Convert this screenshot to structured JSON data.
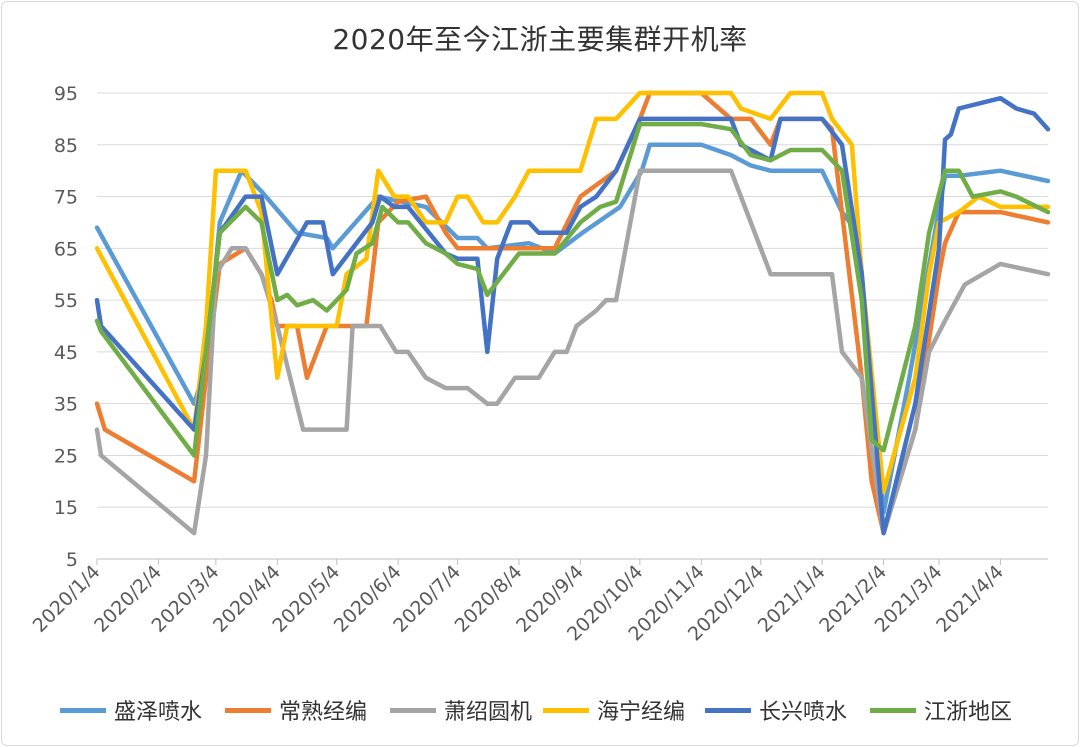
{
  "chart_data": {
    "type": "line",
    "title": "2020年至今江浙主要集群开机率",
    "xlabel": "",
    "ylabel": "",
    "ylim": [
      5,
      95
    ],
    "y_ticks": [
      95,
      85,
      75,
      65,
      55,
      45,
      35,
      25,
      15,
      5
    ],
    "x_range": [
      "2020-01-04",
      "2021-04-28"
    ],
    "x_tick_labels": [
      "2020/1/4",
      "2020/2/4",
      "2020/3/4",
      "2020/4/4",
      "2020/5/4",
      "2020/6/4",
      "2020/7/4",
      "2020/8/4",
      "2020/9/4",
      "2020/10/4",
      "2020/11/4",
      "2020/12/4",
      "2021/1/4",
      "2021/2/4",
      "2021/3/4",
      "2021/4/4"
    ],
    "grid": "horizontal",
    "legend_position": "bottom",
    "series": [
      {
        "name": "盛泽喷水",
        "color": "#5b9bd5",
        "points": [
          [
            "2020-01-04",
            69
          ],
          [
            "2020-02-22",
            35
          ],
          [
            "2020-02-28",
            42
          ],
          [
            "2020-03-06",
            70
          ],
          [
            "2020-03-17",
            80
          ],
          [
            "2020-03-27",
            76
          ],
          [
            "2020-04-14",
            68
          ],
          [
            "2020-04-29",
            67
          ],
          [
            "2020-05-02",
            65
          ],
          [
            "2020-05-25",
            75
          ],
          [
            "2020-06-18",
            73
          ],
          [
            "2020-07-04",
            67
          ],
          [
            "2020-07-14",
            67
          ],
          [
            "2020-07-19",
            65
          ],
          [
            "2020-08-09",
            66
          ],
          [
            "2020-08-22",
            64
          ],
          [
            "2020-09-05",
            68
          ],
          [
            "2020-09-24",
            73
          ],
          [
            "2020-10-05",
            80
          ],
          [
            "2020-10-09",
            85
          ],
          [
            "2020-11-04",
            85
          ],
          [
            "2020-11-19",
            83
          ],
          [
            "2020-11-29",
            81
          ],
          [
            "2020-12-09",
            80
          ],
          [
            "2021-01-04",
            80
          ],
          [
            "2021-01-14",
            72
          ],
          [
            "2021-01-22",
            68
          ],
          [
            "2021-02-04",
            14
          ],
          [
            "2021-02-17",
            40
          ],
          [
            "2021-03-07",
            79
          ],
          [
            "2021-03-14",
            79
          ],
          [
            "2021-04-04",
            80
          ],
          [
            "2021-04-28",
            78
          ]
        ]
      },
      {
        "name": "常熟经编",
        "color": "#ed7d31",
        "points": [
          [
            "2020-01-04",
            35
          ],
          [
            "2020-01-08",
            30
          ],
          [
            "2020-02-22",
            20
          ],
          [
            "2020-02-28",
            40
          ],
          [
            "2020-03-06",
            62
          ],
          [
            "2020-03-19",
            65
          ],
          [
            "2020-03-27",
            60
          ],
          [
            "2020-04-01",
            55
          ],
          [
            "2020-04-04",
            50
          ],
          [
            "2020-04-14",
            50
          ],
          [
            "2020-04-19",
            40
          ],
          [
            "2020-04-29",
            50
          ],
          [
            "2020-05-19",
            50
          ],
          [
            "2020-05-25",
            70
          ],
          [
            "2020-06-04",
            74
          ],
          [
            "2020-06-18",
            75
          ],
          [
            "2020-06-28",
            68
          ],
          [
            "2020-07-04",
            65
          ],
          [
            "2020-08-04",
            65
          ],
          [
            "2020-08-22",
            65
          ],
          [
            "2020-09-04",
            75
          ],
          [
            "2020-09-22",
            80
          ],
          [
            "2020-10-04",
            90
          ],
          [
            "2020-10-09",
            95
          ],
          [
            "2020-11-04",
            95
          ],
          [
            "2020-11-19",
            90
          ],
          [
            "2020-11-29",
            90
          ],
          [
            "2020-12-09",
            85
          ],
          [
            "2020-12-14",
            90
          ],
          [
            "2021-01-04",
            90
          ],
          [
            "2021-01-09",
            88
          ],
          [
            "2021-01-24",
            40
          ],
          [
            "2021-01-29",
            20
          ],
          [
            "2021-02-04",
            10
          ],
          [
            "2021-02-20",
            30
          ],
          [
            "2021-03-04",
            60
          ],
          [
            "2021-03-07",
            66
          ],
          [
            "2021-03-14",
            72
          ],
          [
            "2021-04-04",
            72
          ],
          [
            "2021-04-28",
            70
          ]
        ]
      },
      {
        "name": "萧绍圆机",
        "color": "#a5a5a5",
        "points": [
          [
            "2020-01-04",
            30
          ],
          [
            "2020-01-06",
            25
          ],
          [
            "2020-02-22",
            10
          ],
          [
            "2020-02-28",
            25
          ],
          [
            "2020-03-04",
            60
          ],
          [
            "2020-03-12",
            65
          ],
          [
            "2020-03-19",
            65
          ],
          [
            "2020-03-27",
            60
          ],
          [
            "2020-04-04",
            50
          ],
          [
            "2020-04-17",
            30
          ],
          [
            "2020-05-09",
            30
          ],
          [
            "2020-05-12",
            50
          ],
          [
            "2020-05-26",
            50
          ],
          [
            "2020-06-03",
            45
          ],
          [
            "2020-06-09",
            45
          ],
          [
            "2020-06-18",
            40
          ],
          [
            "2020-06-28",
            38
          ],
          [
            "2020-07-09",
            38
          ],
          [
            "2020-07-19",
            35
          ],
          [
            "2020-07-24",
            35
          ],
          [
            "2020-08-02",
            40
          ],
          [
            "2020-08-14",
            40
          ],
          [
            "2020-08-22",
            45
          ],
          [
            "2020-08-28",
            45
          ],
          [
            "2020-09-02",
            50
          ],
          [
            "2020-09-12",
            53
          ],
          [
            "2020-09-17",
            55
          ],
          [
            "2020-09-22",
            55
          ],
          [
            "2020-10-04",
            80
          ],
          [
            "2020-11-04",
            80
          ],
          [
            "2020-11-19",
            80
          ],
          [
            "2020-12-04",
            65
          ],
          [
            "2020-12-09",
            60
          ],
          [
            "2021-01-04",
            60
          ],
          [
            "2021-01-09",
            60
          ],
          [
            "2021-01-14",
            45
          ],
          [
            "2021-01-24",
            40
          ],
          [
            "2021-02-04",
            10
          ],
          [
            "2021-02-20",
            30
          ],
          [
            "2021-02-27",
            45
          ],
          [
            "2021-03-07",
            51
          ],
          [
            "2021-03-17",
            58
          ],
          [
            "2021-04-04",
            62
          ],
          [
            "2021-04-28",
            60
          ]
        ]
      },
      {
        "name": "海宁经编",
        "color": "#ffc000",
        "points": [
          [
            "2020-01-04",
            65
          ],
          [
            "2020-02-22",
            30
          ],
          [
            "2020-02-28",
            50
          ],
          [
            "2020-03-04",
            80
          ],
          [
            "2020-03-19",
            80
          ],
          [
            "2020-03-27",
            72
          ],
          [
            "2020-04-04",
            40
          ],
          [
            "2020-04-09",
            50
          ],
          [
            "2020-04-29",
            50
          ],
          [
            "2020-05-04",
            50
          ],
          [
            "2020-05-09",
            60
          ],
          [
            "2020-05-19",
            63
          ],
          [
            "2020-05-25",
            80
          ],
          [
            "2020-06-02",
            75
          ],
          [
            "2020-06-09",
            75
          ],
          [
            "2020-06-18",
            70
          ],
          [
            "2020-06-28",
            70
          ],
          [
            "2020-07-04",
            75
          ],
          [
            "2020-07-09",
            75
          ],
          [
            "2020-07-17",
            70
          ],
          [
            "2020-07-24",
            70
          ],
          [
            "2020-08-02",
            75
          ],
          [
            "2020-08-09",
            80
          ],
          [
            "2020-09-04",
            80
          ],
          [
            "2020-09-12",
            90
          ],
          [
            "2020-09-22",
            90
          ],
          [
            "2020-10-04",
            95
          ],
          [
            "2020-11-04",
            95
          ],
          [
            "2020-11-19",
            95
          ],
          [
            "2020-11-24",
            92
          ],
          [
            "2020-12-09",
            90
          ],
          [
            "2020-12-19",
            95
          ],
          [
            "2021-01-04",
            95
          ],
          [
            "2021-01-09",
            90
          ],
          [
            "2021-01-19",
            85
          ],
          [
            "2021-01-24",
            60
          ],
          [
            "2021-02-04",
            18
          ],
          [
            "2021-02-20",
            40
          ],
          [
            "2021-02-27",
            60
          ],
          [
            "2021-03-04",
            70
          ],
          [
            "2021-03-14",
            72
          ],
          [
            "2021-03-24",
            75
          ],
          [
            "2021-04-04",
            73
          ],
          [
            "2021-04-28",
            73
          ]
        ]
      },
      {
        "name": "长兴喷水",
        "color": "#4472c4",
        "points": [
          [
            "2020-01-04",
            55
          ],
          [
            "2020-01-06",
            50
          ],
          [
            "2020-02-22",
            30
          ],
          [
            "2020-02-28",
            45
          ],
          [
            "2020-03-06",
            68
          ],
          [
            "2020-03-19",
            75
          ],
          [
            "2020-03-27",
            75
          ],
          [
            "2020-04-04",
            60
          ],
          [
            "2020-04-19",
            70
          ],
          [
            "2020-04-27",
            70
          ],
          [
            "2020-05-02",
            60
          ],
          [
            "2020-05-22",
            70
          ],
          [
            "2020-05-26",
            75
          ],
          [
            "2020-06-02",
            73
          ],
          [
            "2020-06-09",
            73
          ],
          [
            "2020-06-28",
            64
          ],
          [
            "2020-07-04",
            63
          ],
          [
            "2020-07-14",
            63
          ],
          [
            "2020-07-19",
            45
          ],
          [
            "2020-07-24",
            63
          ],
          [
            "2020-07-31",
            70
          ],
          [
            "2020-08-09",
            70
          ],
          [
            "2020-08-14",
            68
          ],
          [
            "2020-08-22",
            68
          ],
          [
            "2020-08-28",
            68
          ],
          [
            "2020-09-04",
            73
          ],
          [
            "2020-09-12",
            75
          ],
          [
            "2020-09-22",
            80
          ],
          [
            "2020-10-04",
            90
          ],
          [
            "2020-11-04",
            90
          ],
          [
            "2020-11-19",
            90
          ],
          [
            "2020-11-24",
            85
          ],
          [
            "2020-12-09",
            82
          ],
          [
            "2020-12-14",
            90
          ],
          [
            "2021-01-04",
            90
          ],
          [
            "2021-01-14",
            85
          ],
          [
            "2021-01-24",
            60
          ],
          [
            "2021-02-04",
            10
          ],
          [
            "2021-02-20",
            35
          ],
          [
            "2021-03-04",
            65
          ],
          [
            "2021-03-07",
            86
          ],
          [
            "2021-03-10",
            87
          ],
          [
            "2021-03-14",
            92
          ],
          [
            "2021-04-04",
            94
          ],
          [
            "2021-04-12",
            92
          ],
          [
            "2021-04-21",
            91
          ],
          [
            "2021-04-28",
            88
          ]
        ]
      },
      {
        "name": "江浙地区",
        "color": "#70ad47",
        "points": [
          [
            "2020-01-04",
            51
          ],
          [
            "2020-01-06",
            49
          ],
          [
            "2020-02-22",
            25
          ],
          [
            "2020-02-28",
            45
          ],
          [
            "2020-03-06",
            68
          ],
          [
            "2020-03-19",
            73
          ],
          [
            "2020-03-27",
            70
          ],
          [
            "2020-04-04",
            55
          ],
          [
            "2020-04-09",
            56
          ],
          [
            "2020-04-14",
            54
          ],
          [
            "2020-04-22",
            55
          ],
          [
            "2020-04-29",
            53
          ],
          [
            "2020-05-09",
            57
          ],
          [
            "2020-05-14",
            64
          ],
          [
            "2020-05-22",
            66
          ],
          [
            "2020-05-27",
            73
          ],
          [
            "2020-06-04",
            70
          ],
          [
            "2020-06-09",
            70
          ],
          [
            "2020-06-18",
            66
          ],
          [
            "2020-06-28",
            64
          ],
          [
            "2020-07-04",
            62
          ],
          [
            "2020-07-14",
            61
          ],
          [
            "2020-07-19",
            56
          ],
          [
            "2020-08-04",
            64
          ],
          [
            "2020-08-22",
            64
          ],
          [
            "2020-09-04",
            70
          ],
          [
            "2020-09-14",
            73
          ],
          [
            "2020-09-22",
            74
          ],
          [
            "2020-10-04",
            89
          ],
          [
            "2020-11-04",
            89
          ],
          [
            "2020-11-19",
            88
          ],
          [
            "2020-11-29",
            83
          ],
          [
            "2020-12-09",
            82
          ],
          [
            "2020-12-19",
            84
          ],
          [
            "2021-01-04",
            84
          ],
          [
            "2021-01-14",
            80
          ],
          [
            "2021-01-24",
            55
          ],
          [
            "2021-01-29",
            28
          ],
          [
            "2021-02-04",
            26
          ],
          [
            "2021-02-20",
            50
          ],
          [
            "2021-02-27",
            68
          ],
          [
            "2021-03-07",
            80
          ],
          [
            "2021-03-14",
            80
          ],
          [
            "2021-03-21",
            75
          ],
          [
            "2021-04-04",
            76
          ],
          [
            "2021-04-12",
            75
          ],
          [
            "2021-04-28",
            72
          ]
        ]
      }
    ]
  }
}
